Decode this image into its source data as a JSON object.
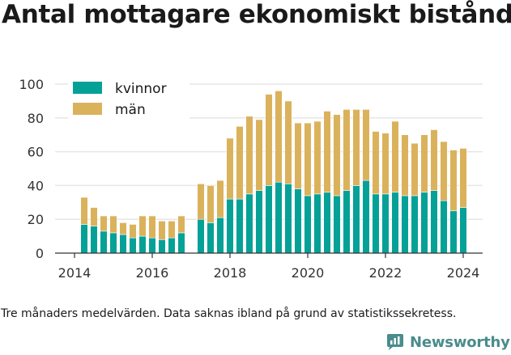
{
  "title": "Antal mottagare ekonomiskt bistånd",
  "caption": "Tre månaders medelvärden. Data saknas ibland på grund av statistikssekretess.",
  "brand": {
    "name": "Newsworthy",
    "icon": "newsworthy-logo-icon"
  },
  "colors": {
    "kvinnor": "#05a197",
    "man": "#dbb25c",
    "grid": "#e6e6e6",
    "axis": "#333333"
  },
  "chart_data": {
    "type": "bar",
    "stacked": true,
    "title": "Antal mottagare ekonomiskt bistånd",
    "xlabel": "",
    "ylabel": "",
    "ylim": [
      0,
      100
    ],
    "yticks": [
      0,
      20,
      40,
      60,
      80,
      100
    ],
    "xlim": [
      2013.5,
      2024.5
    ],
    "xticks": [
      "2014",
      "2016",
      "2018",
      "2020",
      "2022",
      "2024"
    ],
    "grid": true,
    "legend": "top-left",
    "x": [
      2014.25,
      2014.5,
      2014.75,
      2015.0,
      2015.25,
      2015.5,
      2015.75,
      2016.0,
      2016.25,
      2016.5,
      2016.75,
      2017.0,
      2017.25,
      2017.5,
      2017.75,
      2018.0,
      2018.25,
      2018.5,
      2018.75,
      2019.0,
      2019.25,
      2019.5,
      2019.75,
      2020.0,
      2020.25,
      2020.5,
      2020.75,
      2021.0,
      2021.25,
      2021.5,
      2021.75,
      2022.0,
      2022.25,
      2022.5,
      2022.75,
      2023.0,
      2023.25,
      2023.5,
      2023.75,
      2024.0
    ],
    "series": [
      {
        "name": "kvinnor",
        "values": [
          17,
          16,
          13,
          12,
          11,
          9,
          10,
          9,
          8,
          9,
          12,
          null,
          20,
          18,
          21,
          32,
          32,
          35,
          37,
          40,
          42,
          41,
          38,
          34,
          35,
          36,
          34,
          37,
          40,
          43,
          35,
          35,
          36,
          34,
          34,
          36,
          37,
          31,
          25,
          27
        ]
      },
      {
        "name": "män",
        "values": [
          16,
          11,
          9,
          10,
          7,
          8,
          12,
          13,
          11,
          10,
          10,
          null,
          21,
          22,
          22,
          36,
          43,
          46,
          42,
          54,
          54,
          49,
          39,
          43,
          43,
          48,
          48,
          48,
          45,
          42,
          37,
          36,
          42,
          36,
          31,
          34,
          36,
          35,
          36,
          35
        ]
      }
    ]
  }
}
